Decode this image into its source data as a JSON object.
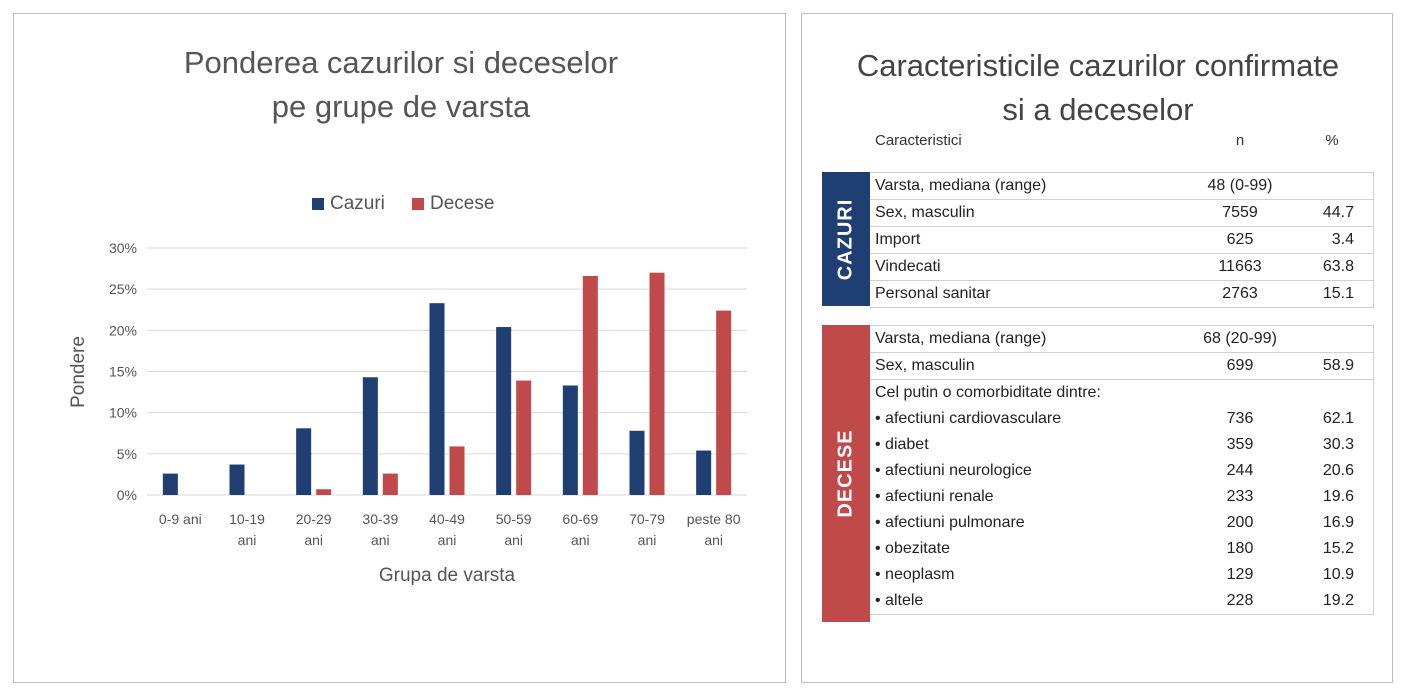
{
  "chart_data": {
    "type": "bar",
    "title_lines": [
      "Ponderea cazurilor si deceselor",
      "pe grupe de varsta"
    ],
    "xlabel": "Grupa de varsta",
    "ylabel": "Pondere",
    "ylim": [
      0,
      30
    ],
    "yticks": [
      "0%",
      "5%",
      "10%",
      "15%",
      "20%",
      "25%",
      "30%"
    ],
    "ytick_values": [
      0,
      5,
      10,
      15,
      20,
      25,
      30
    ],
    "grid": true,
    "legend_position": "top",
    "categories": [
      [
        "0-9 ani"
      ],
      [
        "10-19",
        "ani"
      ],
      [
        "20-29",
        "ani"
      ],
      [
        "30-39",
        "ani"
      ],
      [
        "40-49",
        "ani"
      ],
      [
        "50-59",
        "ani"
      ],
      [
        "60-69",
        "ani"
      ],
      [
        "70-79",
        "ani"
      ],
      [
        "peste 80",
        "ani"
      ]
    ],
    "series": [
      {
        "name": "Cazuri",
        "color": "#1f3f73",
        "values": [
          2.6,
          3.7,
          8.1,
          14.3,
          23.3,
          20.4,
          13.3,
          7.8,
          5.4
        ]
      },
      {
        "name": "Decese",
        "color": "#c04a4a",
        "values": [
          0,
          0,
          0.7,
          2.6,
          5.9,
          13.9,
          26.6,
          27.0,
          22.4
        ]
      }
    ]
  },
  "table": {
    "title_lines": [
      "Caracteristicile cazurilor confirmate",
      "si a deceselor"
    ],
    "headers": {
      "characteristic": "Caracteristici",
      "n": "n",
      "percent": "%"
    },
    "cazuri": {
      "label": "CAZURI",
      "color": "#1f3f73",
      "rows": [
        {
          "label": "Varsta, mediana (range)",
          "n": "48 (0-99)",
          "pct": ""
        },
        {
          "label": "Sex, masculin",
          "n": "7559",
          "pct": "44.7"
        },
        {
          "label": "Import",
          "n": "625",
          "pct": "3.4"
        },
        {
          "label": "Vindecati",
          "n": "11663",
          "pct": "63.8"
        },
        {
          "label": "Personal sanitar",
          "n": "2763",
          "pct": "15.1"
        }
      ]
    },
    "decese": {
      "label": "DECESE",
      "color": "#c04a4a",
      "rows": [
        {
          "label": "Varsta, mediana (range)",
          "n": "68 (20-99)",
          "pct": ""
        },
        {
          "label": "Sex, masculin",
          "n": "699",
          "pct": "58.9"
        }
      ],
      "comorbidity_header": "Cel putin o comorbiditate dintre:",
      "comorbidities": [
        {
          "label": "• afectiuni cardiovasculare",
          "n": "736",
          "pct": "62.1"
        },
        {
          "label": "• diabet",
          "n": "359",
          "pct": "30.3"
        },
        {
          "label": "• afectiuni neurologice",
          "n": "244",
          "pct": "20.6"
        },
        {
          "label": "• afectiuni renale",
          "n": "233",
          "pct": "19.6"
        },
        {
          "label": "• afectiuni pulmonare",
          "n": "200",
          "pct": "16.9"
        },
        {
          "label": "• obezitate",
          "n": "180",
          "pct": "15.2"
        },
        {
          "label": "• neoplasm",
          "n": "129",
          "pct": "10.9"
        },
        {
          "label": "• altele",
          "n": "228",
          "pct": "19.2"
        }
      ]
    }
  }
}
